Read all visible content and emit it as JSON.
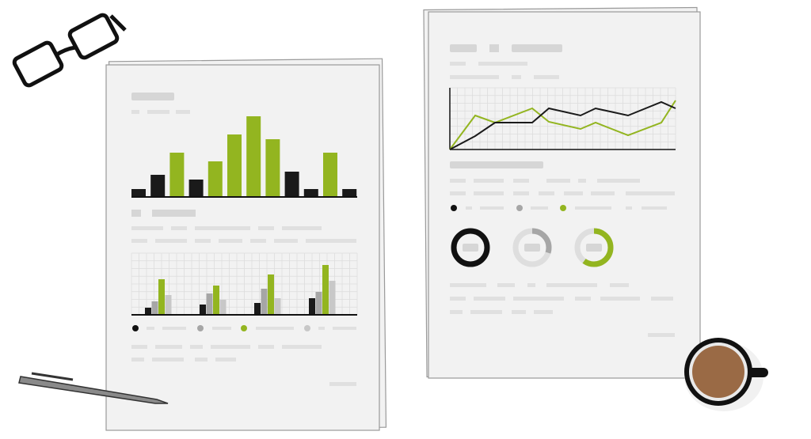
{
  "left_document": {
    "bar_chart": {
      "colors": [
        "#1a1a1a",
        "#1a1a1a",
        "#93b520",
        "#1a1a1a",
        "#93b520",
        "#93b520",
        "#93b520",
        "#93b520",
        "#1a1a1a",
        "#1a1a1a",
        "#93b520",
        "#1a1a1a"
      ],
      "values": [
        9,
        27,
        55,
        21,
        44,
        78,
        101,
        72,
        31,
        9,
        55,
        9
      ]
    },
    "grouped_chart": {
      "series": [
        {
          "color": "#1a1a1a",
          "values": [
            8,
            12,
            14,
            20
          ]
        },
        {
          "color": "#a6a6a6",
          "values": [
            16,
            26,
            32,
            28
          ]
        },
        {
          "color": "#93b520",
          "values": [
            44,
            36,
            50,
            62
          ]
        },
        {
          "color": "#c8c8c8",
          "values": [
            24,
            18,
            20,
            42
          ]
        }
      ]
    }
  },
  "right_document": {
    "line_chart": {
      "x": [
        0,
        32,
        57,
        104,
        125,
        165,
        184,
        225,
        267,
        285
      ],
      "series": [
        {
          "color": "#93b520",
          "values": [
            0,
            43,
            34,
            52,
            35,
            26,
            34,
            18,
            34,
            62
          ]
        },
        {
          "color": "#1a1a1a",
          "values": [
            0,
            17,
            34,
            34,
            52,
            43,
            52,
            43,
            60,
            52
          ]
        }
      ]
    },
    "donuts": [
      {
        "color": "#111111",
        "value": 100
      },
      {
        "color": "#a6a6a6",
        "value": 30
      },
      {
        "color": "#93b520",
        "value": 60
      }
    ]
  }
}
